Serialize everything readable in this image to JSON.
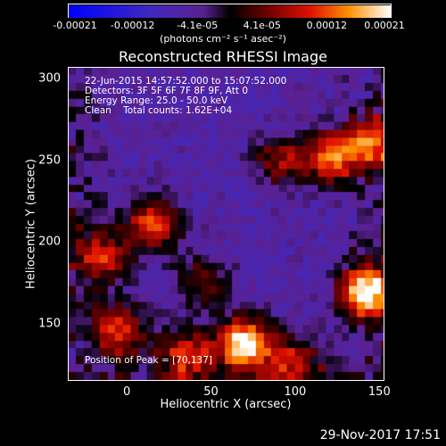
{
  "chart_data": {
    "type": "heatmap",
    "title": "Reconstructed RHESSI Image",
    "xlabel": "Heliocentric X (arcsec)",
    "ylabel": "Heliocentric Y (arcsec)",
    "xlim": [
      -35,
      153
    ],
    "ylim": [
      115,
      307
    ],
    "x_ticks": [
      "0",
      "50",
      "100",
      "150"
    ],
    "y_ticks": [
      "150",
      "200",
      "250",
      "300"
    ],
    "colorbar": {
      "ticks": [
        "-0.00021",
        "-0.00012",
        "-4.1e-05",
        "4.1e-05",
        "0.00012",
        "0.00021"
      ],
      "range": [
        -0.00021,
        0.00021
      ],
      "unit_label": "(photons cm⁻² s⁻¹ asec⁻²)"
    },
    "annotations": {
      "time_range": "22-Jun-2015 14:57:52.000 to 15:07:52.000",
      "detectors": "Detectors: 3F 5F 6F 7F 8F 9F, Att 0",
      "energy_range": "Energy Range: 25.0 - 50.0 keV",
      "algorithm": "Clean    Total counts: 1.62E+04",
      "peak": "Position of Peak = [70,137]"
    },
    "hot_spots": [
      {
        "x": 70,
        "y": 137,
        "strength": 1.0
      },
      {
        "x": 143,
        "y": 168,
        "strength": 0.95
      },
      {
        "x": 123,
        "y": 252,
        "strength": 0.7
      },
      {
        "x": 147,
        "y": 260,
        "strength": 0.6
      },
      {
        "x": 15,
        "y": 210,
        "strength": 0.65
      },
      {
        "x": -15,
        "y": 190,
        "strength": 0.55
      },
      {
        "x": -5,
        "y": 145,
        "strength": 0.6
      },
      {
        "x": 35,
        "y": 130,
        "strength": 0.55
      },
      {
        "x": 100,
        "y": 125,
        "strength": 0.45
      },
      {
        "x": 92,
        "y": 250,
        "strength": 0.45
      },
      {
        "x": 45,
        "y": 175,
        "strength": 0.35
      }
    ]
  },
  "footer": {
    "timestamp": "29-Nov-2017 17:51"
  }
}
